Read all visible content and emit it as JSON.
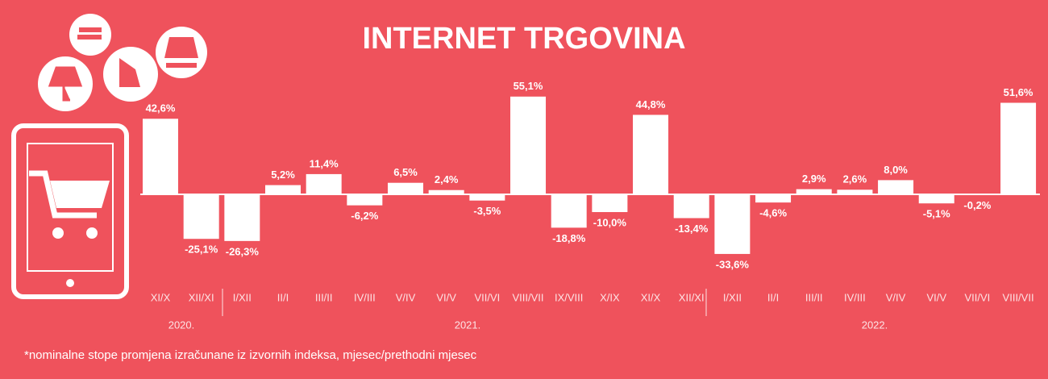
{
  "chart_data": {
    "type": "bar",
    "title": "INTERNET TRGOVINA",
    "categories": [
      "XI/X",
      "XII/XI",
      "I/XII",
      "II/I",
      "III/II",
      "IV/III",
      "V/IV",
      "VI/V",
      "VII/VI",
      "VIII/VII",
      "IX/VIII",
      "X/IX",
      "XI/X",
      "XII/XI",
      "I/XII",
      "II/I",
      "III/II",
      "IV/III",
      "V/IV",
      "VI/V",
      "VII/VI",
      "VIII/VII"
    ],
    "values": [
      42.6,
      -25.1,
      -26.3,
      5.2,
      11.4,
      -6.2,
      6.5,
      2.4,
      -3.5,
      55.1,
      -18.8,
      -10.0,
      44.8,
      -13.4,
      -33.6,
      -4.6,
      2.9,
      2.6,
      8.0,
      -5.1,
      -0.2,
      51.6
    ],
    "value_labels": [
      "42,6%",
      "-25,1%",
      "-26,3%",
      "5,2%",
      "11,4%",
      "-6,2%",
      "6,5%",
      "2,4%",
      "-3,5%",
      "55,1%",
      "-18,8%",
      "-10,0%",
      "44,8%",
      "-13,4%",
      "-33,6%",
      "-4,6%",
      "2,9%",
      "2,6%",
      "8,0%",
      "-5,1%",
      "-0,2%",
      "51,6%"
    ],
    "color": "#ffffff",
    "years": [
      "2020.",
      "2021.",
      "2022."
    ],
    "footnote": "*nominalne stope promjena izračunane iz izvornih indeksa, mjesec/prethodni mjesec"
  }
}
